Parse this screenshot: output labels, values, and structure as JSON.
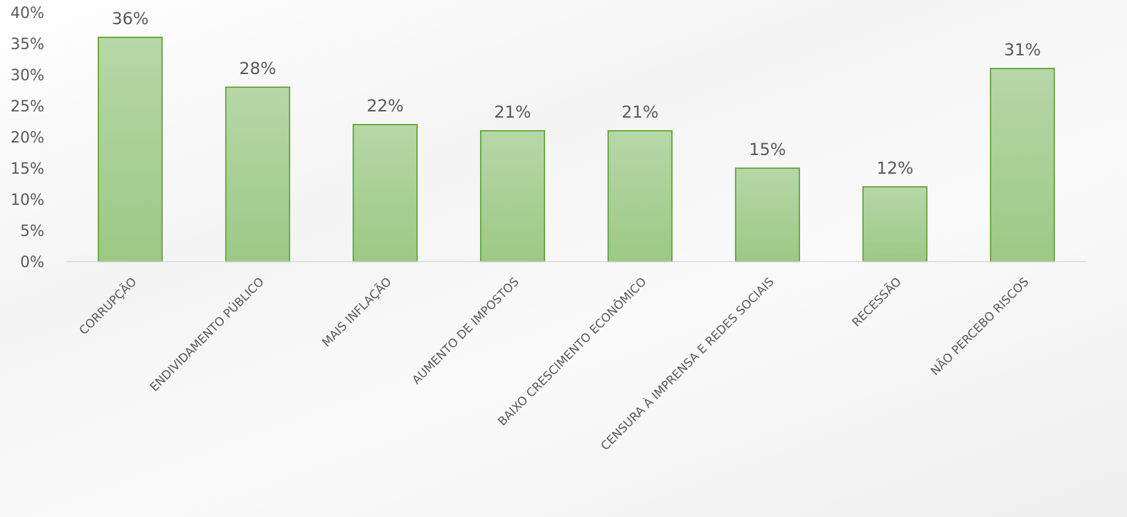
{
  "chart_data": {
    "type": "bar",
    "categories": [
      "CORRUPÇÃO",
      "ENDIVIDAMENTO PÚBLICO",
      "MAIS INFLAÇÃO",
      "AUMENTO DE IMPOSTOS",
      "BAIXO CRESCIMENTO ECONÔMICO",
      "CENSURA À IMPRENSA E REDES SOCIAIS",
      "RECESSÃO",
      "NÃO PERCEBO RISCOS"
    ],
    "values": [
      36,
      28,
      22,
      21,
      21,
      15,
      12,
      31
    ],
    "data_labels": [
      "36%",
      "28%",
      "22%",
      "21%",
      "21%",
      "15%",
      "12%",
      "31%"
    ],
    "yticks": [
      "0%",
      "5%",
      "10%",
      "15%",
      "20%",
      "25%",
      "30%",
      "35%",
      "40%"
    ],
    "ylim": [
      0,
      40
    ],
    "ytick_step": 5,
    "title": "",
    "xlabel": "",
    "ylabel": "",
    "grid": false,
    "colors": {
      "bar_top": "#b7d7a8",
      "bar_bottom": "#9cc985",
      "bar_stroke": "#6aab45",
      "axis": "#d9d9d9",
      "text": "#595959"
    }
  }
}
